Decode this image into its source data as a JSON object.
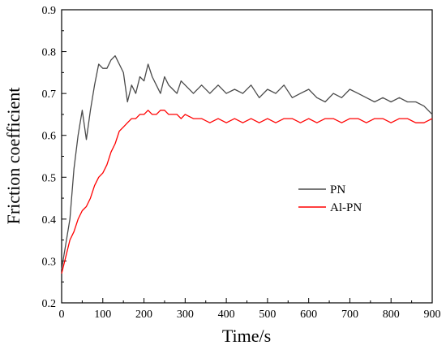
{
  "chart_data": {
    "type": "line",
    "title": "",
    "xlabel": "Time/s",
    "ylabel": "Friction coefficient",
    "xlim": [
      0,
      900
    ],
    "ylim": [
      0.2,
      0.9
    ],
    "x_ticks": [
      0,
      100,
      200,
      300,
      400,
      500,
      600,
      700,
      800,
      900
    ],
    "y_ticks": [
      0.2,
      0.3,
      0.4,
      0.5,
      0.6,
      0.7,
      0.8,
      0.9
    ],
    "x_tick_labels": [
      "0",
      "100",
      "200",
      "300",
      "400",
      "500",
      "600",
      "700",
      "800",
      "900"
    ],
    "y_tick_labels": [
      "0.2",
      "0.3",
      "0.4",
      "0.5",
      "0.6",
      "0.7",
      "0.8",
      "0.9"
    ],
    "grid": false,
    "legend_position": "center-right",
    "series": [
      {
        "name": "PN",
        "color": "#4a4a4a",
        "x": [
          0,
          10,
          20,
          30,
          40,
          50,
          60,
          70,
          80,
          90,
          100,
          110,
          120,
          130,
          140,
          150,
          160,
          170,
          180,
          190,
          200,
          210,
          220,
          230,
          240,
          250,
          260,
          270,
          280,
          290,
          300,
          320,
          340,
          360,
          380,
          400,
          420,
          440,
          460,
          480,
          500,
          520,
          540,
          560,
          580,
          600,
          620,
          640,
          660,
          680,
          700,
          720,
          740,
          760,
          780,
          800,
          820,
          840,
          860,
          880,
          900
        ],
        "values": [
          0.28,
          0.34,
          0.4,
          0.52,
          0.6,
          0.66,
          0.59,
          0.66,
          0.72,
          0.77,
          0.76,
          0.76,
          0.78,
          0.79,
          0.77,
          0.75,
          0.68,
          0.72,
          0.7,
          0.74,
          0.73,
          0.77,
          0.74,
          0.72,
          0.7,
          0.74,
          0.72,
          0.71,
          0.7,
          0.73,
          0.72,
          0.7,
          0.72,
          0.7,
          0.72,
          0.7,
          0.71,
          0.7,
          0.72,
          0.69,
          0.71,
          0.7,
          0.72,
          0.69,
          0.7,
          0.71,
          0.69,
          0.68,
          0.7,
          0.69,
          0.71,
          0.7,
          0.69,
          0.68,
          0.69,
          0.68,
          0.69,
          0.68,
          0.68,
          0.67,
          0.65
        ]
      },
      {
        "name": "Al-PN",
        "color": "#ff0000",
        "x": [
          0,
          10,
          20,
          30,
          40,
          50,
          60,
          70,
          80,
          90,
          100,
          110,
          120,
          130,
          140,
          150,
          160,
          170,
          180,
          190,
          200,
          210,
          220,
          230,
          240,
          250,
          260,
          270,
          280,
          290,
          300,
          320,
          340,
          360,
          380,
          400,
          420,
          440,
          460,
          480,
          500,
          520,
          540,
          560,
          580,
          600,
          620,
          640,
          660,
          680,
          700,
          720,
          740,
          760,
          780,
          800,
          820,
          840,
          860,
          880,
          900
        ],
        "values": [
          0.27,
          0.31,
          0.35,
          0.37,
          0.4,
          0.42,
          0.43,
          0.45,
          0.48,
          0.5,
          0.51,
          0.53,
          0.56,
          0.58,
          0.61,
          0.62,
          0.63,
          0.64,
          0.64,
          0.65,
          0.65,
          0.66,
          0.65,
          0.65,
          0.66,
          0.66,
          0.65,
          0.65,
          0.65,
          0.64,
          0.65,
          0.64,
          0.64,
          0.63,
          0.64,
          0.63,
          0.64,
          0.63,
          0.64,
          0.63,
          0.64,
          0.63,
          0.64,
          0.64,
          0.63,
          0.64,
          0.63,
          0.64,
          0.64,
          0.63,
          0.64,
          0.64,
          0.63,
          0.64,
          0.64,
          0.63,
          0.64,
          0.64,
          0.63,
          0.63,
          0.64
        ]
      }
    ]
  }
}
